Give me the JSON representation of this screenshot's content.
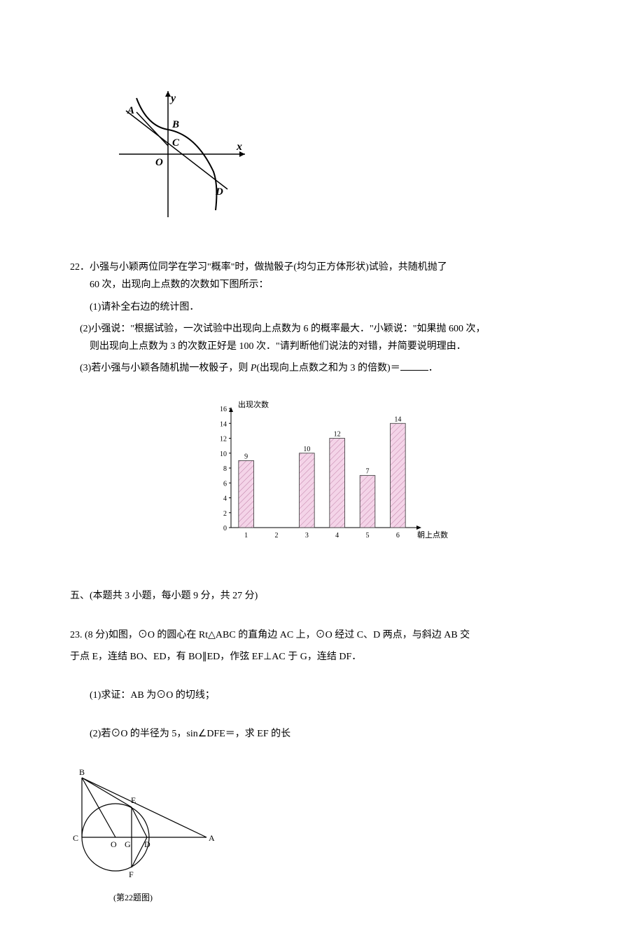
{
  "parabola": {
    "labels": {
      "y": "y",
      "x": "x",
      "A": "A",
      "B": "B",
      "C": "C",
      "D": "D",
      "O": "O"
    },
    "colors": {
      "stroke": "#000000",
      "bg": "#ffffff"
    }
  },
  "q22": {
    "number": "22．",
    "main_line1": "小强与小颖两位同学在学习\"概率\"时，做抛骰子(均匀正方体形状)试验，共随机抛了",
    "main_line2": "60 次，出现向上点数的次数如下图所示：",
    "sub1": "(1)请补全右边的统计图．",
    "sub2_line1": "(2)小强说：\"根据试验，一次试验中出现向上点数为 6 的概率最大．\"小颖说：\"如果抛 600 次，",
    "sub2_line2": "则出现向上点数为 3 的次数正好是 100 次．\"请判断他们说法的对错，并简要说明理由．",
    "sub3_pre": "(3)若小强与小颖各随机抛一枚骰子，则 ",
    "sub3_P": "P",
    "sub3_mid": "(出现向上点数之和为 3 的倍数)＝",
    "sub3_post": "．"
  },
  "barchart": {
    "y_axis_label": "出现次数",
    "x_axis_label": "朝上点数",
    "y_ticks": [
      0,
      2,
      4,
      6,
      8,
      10,
      12,
      14,
      16
    ],
    "x_ticks": [
      "1",
      "2",
      "3",
      "4",
      "5",
      "6"
    ],
    "values": [
      9,
      null,
      10,
      12,
      7,
      14
    ],
    "value_labels": [
      "9",
      "",
      "10",
      "12",
      "7",
      "14"
    ],
    "colors": {
      "bar_fill": "#f4d4e8",
      "bar_stroke": "#333333",
      "axis": "#000000",
      "text": "#000000"
    },
    "ylim": [
      0,
      16
    ]
  },
  "section5": {
    "title": "五、(本题共 3 小题，每小题 9 分，共 27 分)"
  },
  "q23": {
    "number": "23.",
    "line1": "(8 分)如图，⊙O 的圆心在 Rt△ABC 的直角边 AC 上，⊙O 经过 C、D 两点，与斜边 AB 交",
    "line2": "于点 E，连结 BO、ED，有 BO∥ED，作弦 EF⊥AC 于 G，连结 DF．",
    "sub1": "(1)求证：AB 为⊙O 的切线；",
    "sub2": "(2)若⊙O 的半径为 5，sin∠DFE＝，求 EF 的长"
  },
  "circle_figure": {
    "labels": {
      "A": "A",
      "B": "B",
      "C": "C",
      "D": "D",
      "E": "E",
      "F": "F",
      "G": "G",
      "O": "O"
    },
    "caption": "(第22题图)",
    "colors": {
      "stroke": "#000000"
    }
  }
}
